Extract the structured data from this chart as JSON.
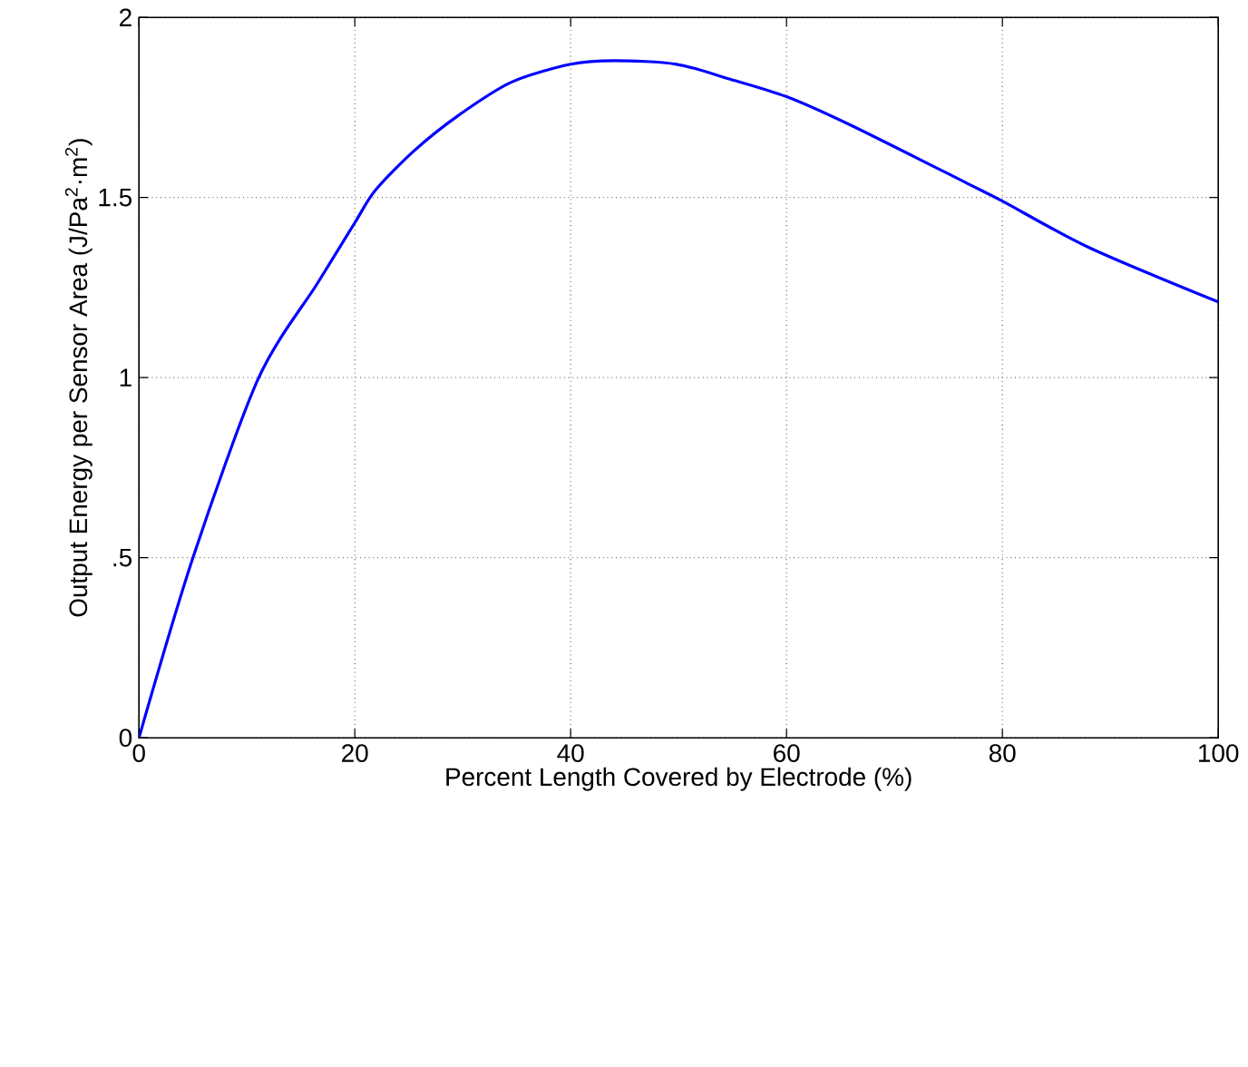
{
  "chart_data": {
    "type": "line",
    "xlabel": "Percent Length Covered by Electrode (%)",
    "ylabel": "Output Energy per Sensor Area (J/Pa$^{2}$·m$^{2}$)",
    "x": [
      0,
      5,
      11.1,
      16.5,
      20,
      21.9,
      25.5,
      29.7,
      34.5,
      40,
      44.1,
      49.8,
      54.6,
      60,
      66,
      76.7,
      80,
      88.1,
      100
    ],
    "series": [
      {
        "color": "#0000ff",
        "values": [
          0,
          0.5,
          1.0,
          1.26,
          1.43,
          1.52,
          1.63,
          1.73,
          1.82,
          1.87,
          1.88,
          1.87,
          1.83,
          1.78,
          1.7,
          1.54,
          1.49,
          1.36,
          1.21
        ]
      }
    ],
    "xlim": [
      0,
      100
    ],
    "ylim": [
      0,
      2
    ],
    "xticks": [
      0,
      20,
      40,
      60,
      80,
      100
    ],
    "yticks": [
      0,
      {
        "value": 0.5,
        "label": ".5"
      },
      1,
      1.5,
      2
    ],
    "grid": true,
    "line_style": "solid",
    "marker": "none"
  }
}
